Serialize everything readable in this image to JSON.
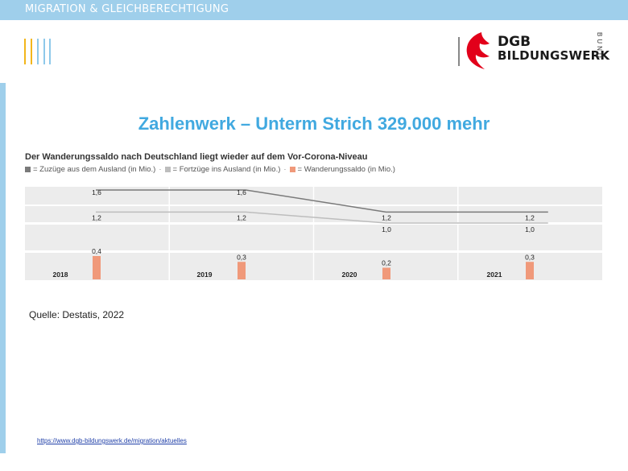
{
  "header": {
    "text": "MIGRATION & GLEICHBERECHTIGUNG"
  },
  "logo": {
    "line1": "DGB",
    "line2": "BILDUNGSWERK",
    "side": "BUND"
  },
  "slide": {
    "title": "Zahlenwerk – Unterm Strich 329.000 mehr",
    "source": "Quelle: Destatis, 2022",
    "footer_link": "https://www.dgb-bildungswerk.de/migration/aktuelles"
  },
  "colors": {
    "header": "#9fcfeb",
    "title": "#41a9e0",
    "zuzuege": "#7a7a7a",
    "fortzuege": "#bdbdbd",
    "saldo": "#f0997a",
    "band": "#ececec",
    "brand_red": "#e2001a"
  },
  "chart_data": {
    "type": "line",
    "title": "Der Wanderungssaldo nach Deutschland liegt wieder auf dem Vor-Corona-Niveau",
    "categories": [
      "2018",
      "2019",
      "2020",
      "2021"
    ],
    "series": [
      {
        "name": "= Zuzüge aus dem Ausland (in Mio.)",
        "values": [
          1.6,
          1.6,
          1.2,
          1.2
        ],
        "labels": [
          "1,6",
          "1,6",
          "1,2",
          "1,2"
        ],
        "color": "#7a7a7a"
      },
      {
        "name": "= Fortzüge ins Ausland (in Mio.)",
        "values": [
          1.2,
          1.2,
          1.0,
          1.0
        ],
        "labels": [
          "1,2",
          "1,2",
          "1,0",
          "1,0"
        ],
        "color": "#bdbdbd"
      },
      {
        "name": "= Wanderungssaldo (in Mio.)",
        "type": "bar",
        "values": [
          0.4,
          0.3,
          0.2,
          0.3
        ],
        "labels": [
          "0,4",
          "0,3",
          "0,2",
          "0,3"
        ],
        "color": "#f0997a"
      }
    ],
    "legend": "top-left",
    "grid": false
  }
}
